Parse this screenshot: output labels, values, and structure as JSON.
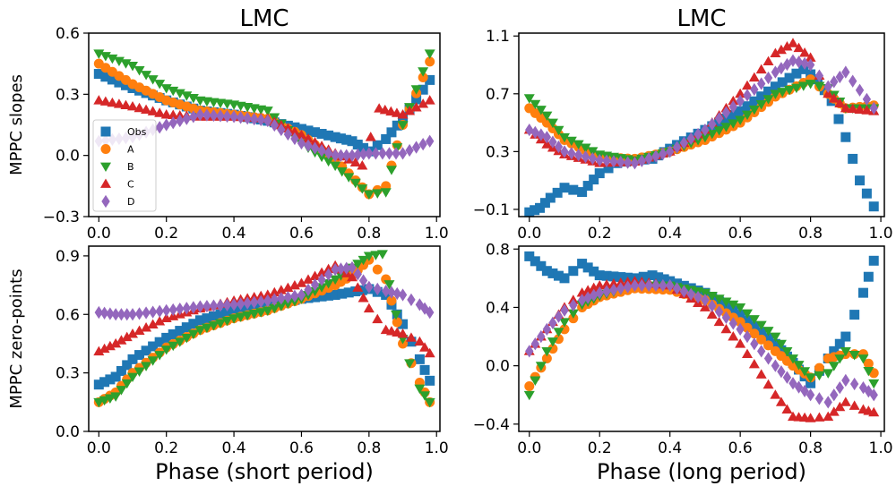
{
  "chart_data": [
    {
      "id": "p0",
      "type": "scatter",
      "title": "LMC",
      "xlabel": "",
      "ylabel": "MPPC slopes",
      "xlim": [
        -0.03,
        1.01
      ],
      "ylim": [
        -0.3,
        0.6
      ],
      "xticks": [
        0.0,
        0.2,
        0.4,
        0.6,
        0.8,
        1.0
      ],
      "xtick_labels": [
        "0.0",
        "0.2",
        "0.4",
        "0.6",
        "0.8",
        "1.0"
      ],
      "yticks": [
        -0.3,
        0.0,
        0.3,
        0.6
      ],
      "ytick_labels": [
        "−0.3",
        "0.0",
        "0.3",
        "0.6"
      ],
      "legend": "bottom-left",
      "series": [
        {
          "name": "Obs",
          "marker": "square",
          "color": "#1f77b4",
          "x": [
            0,
            0.1,
            0.2,
            0.3,
            0.4,
            0.5,
            0.6,
            0.7,
            0.75,
            0.8,
            0.85,
            0.9,
            0.98
          ],
          "y": [
            0.4,
            0.33,
            0.27,
            0.22,
            0.2,
            0.17,
            0.13,
            0.09,
            0.07,
            0.02,
            0.08,
            0.18,
            0.37
          ]
        },
        {
          "name": "A",
          "marker": "circle",
          "color": "#ff7f0e",
          "x": [
            0,
            0.1,
            0.2,
            0.3,
            0.4,
            0.5,
            0.6,
            0.7,
            0.8,
            0.85,
            0.9,
            0.98
          ],
          "y": [
            0.45,
            0.35,
            0.27,
            0.22,
            0.2,
            0.18,
            0.1,
            -0.02,
            -0.19,
            -0.15,
            0.15,
            0.46
          ]
        },
        {
          "name": "B",
          "marker": "triangle-down",
          "color": "#2ca02c",
          "x": [
            0,
            0.1,
            0.2,
            0.3,
            0.4,
            0.5,
            0.6,
            0.7,
            0.8,
            0.85,
            0.9,
            0.98
          ],
          "y": [
            0.5,
            0.44,
            0.33,
            0.27,
            0.25,
            0.22,
            0.06,
            -0.05,
            -0.19,
            -0.18,
            0.15,
            0.5
          ]
        },
        {
          "name": "C",
          "marker": "triangle-up",
          "color": "#d62728",
          "x": [
            0,
            0.1,
            0.2,
            0.3,
            0.4,
            0.5,
            0.6,
            0.7,
            0.78,
            0.83,
            0.9,
            0.98
          ],
          "y": [
            0.27,
            0.24,
            0.2,
            0.19,
            0.19,
            0.18,
            0.1,
            0.01,
            -0.05,
            0.23,
            0.2,
            0.27
          ]
        },
        {
          "name": "D",
          "marker": "diamond",
          "color": "#9467bd",
          "x": [
            0,
            0.1,
            0.2,
            0.3,
            0.4,
            0.5,
            0.6,
            0.7,
            0.75,
            0.8,
            0.9,
            0.98
          ],
          "y": [
            0.07,
            0.09,
            0.15,
            0.2,
            0.19,
            0.17,
            0.06,
            0.0,
            0.0,
            0.01,
            0.01,
            0.07
          ]
        }
      ]
    },
    {
      "id": "p1",
      "type": "scatter",
      "title": "LMC",
      "xlabel": "",
      "ylabel": "",
      "xlim": [
        -0.03,
        1.01
      ],
      "ylim": [
        -0.15,
        1.12
      ],
      "xticks": [
        0.0,
        0.2,
        0.4,
        0.6,
        0.8,
        1.0
      ],
      "xtick_labels": [
        "0.0",
        "0.2",
        "0.4",
        "0.6",
        "0.8",
        "1.0"
      ],
      "yticks": [
        -0.1,
        0.3,
        0.7,
        1.1
      ],
      "ytick_labels": [
        "−0.1",
        "0.3",
        "0.7",
        "1.1"
      ],
      "series": [
        {
          "name": "Obs",
          "marker": "square",
          "color": "#1f77b4",
          "x": [
            0,
            0.03,
            0.06,
            0.1,
            0.15,
            0.2,
            0.25,
            0.3,
            0.35,
            0.4,
            0.5,
            0.6,
            0.7,
            0.78,
            0.82,
            0.86,
            0.9,
            0.94,
            0.98
          ],
          "y": [
            -0.12,
            -0.09,
            -0.02,
            0.05,
            0.02,
            0.15,
            0.22,
            0.24,
            0.25,
            0.32,
            0.45,
            0.58,
            0.75,
            0.87,
            0.8,
            0.65,
            0.4,
            0.1,
            -0.08
          ]
        },
        {
          "name": "A",
          "marker": "circle",
          "color": "#ff7f0e",
          "x": [
            0,
            0.05,
            0.1,
            0.2,
            0.3,
            0.4,
            0.5,
            0.6,
            0.7,
            0.8,
            0.85,
            0.9,
            0.98
          ],
          "y": [
            0.6,
            0.5,
            0.38,
            0.26,
            0.25,
            0.3,
            0.38,
            0.5,
            0.68,
            0.8,
            0.7,
            0.6,
            0.62
          ]
        },
        {
          "name": "B",
          "marker": "triangle-down",
          "color": "#2ca02c",
          "x": [
            0,
            0.05,
            0.1,
            0.2,
            0.3,
            0.4,
            0.5,
            0.6,
            0.7,
            0.8,
            0.85,
            0.9,
            0.98
          ],
          "y": [
            0.67,
            0.55,
            0.4,
            0.28,
            0.24,
            0.3,
            0.4,
            0.52,
            0.7,
            0.77,
            0.74,
            0.6,
            0.6
          ]
        },
        {
          "name": "C",
          "marker": "triangle-up",
          "color": "#d62728",
          "x": [
            0,
            0.05,
            0.1,
            0.2,
            0.3,
            0.4,
            0.5,
            0.6,
            0.7,
            0.75,
            0.8,
            0.85,
            0.9,
            0.98
          ],
          "y": [
            0.45,
            0.35,
            0.28,
            0.22,
            0.23,
            0.3,
            0.45,
            0.7,
            0.98,
            1.05,
            0.95,
            0.7,
            0.6,
            0.58
          ]
        },
        {
          "name": "D",
          "marker": "diamond",
          "color": "#9467bd",
          "x": [
            0,
            0.05,
            0.1,
            0.2,
            0.3,
            0.4,
            0.5,
            0.6,
            0.7,
            0.75,
            0.8,
            0.85,
            0.9,
            0.98
          ],
          "y": [
            0.45,
            0.4,
            0.3,
            0.24,
            0.22,
            0.3,
            0.45,
            0.65,
            0.85,
            0.93,
            0.9,
            0.75,
            0.85,
            0.6
          ]
        }
      ]
    },
    {
      "id": "p2",
      "type": "scatter",
      "title": "",
      "xlabel": "Phase (short period)",
      "ylabel": "MPPC zero-points",
      "xlim": [
        -0.03,
        1.01
      ],
      "ylim": [
        0.0,
        0.95
      ],
      "xticks": [
        0.0,
        0.2,
        0.4,
        0.6,
        0.8,
        1.0
      ],
      "xtick_labels": [
        "0.0",
        "0.2",
        "0.4",
        "0.6",
        "0.8",
        "1.0"
      ],
      "yticks": [
        0.0,
        0.3,
        0.6,
        0.9
      ],
      "ytick_labels": [
        "0.0",
        "0.3",
        "0.6",
        "0.9"
      ],
      "series": [
        {
          "name": "Obs",
          "marker": "square",
          "color": "#1f77b4",
          "x": [
            0,
            0.05,
            0.1,
            0.2,
            0.3,
            0.4,
            0.5,
            0.6,
            0.7,
            0.8,
            0.85,
            0.9,
            0.95,
            0.98
          ],
          "y": [
            0.24,
            0.28,
            0.37,
            0.48,
            0.57,
            0.62,
            0.65,
            0.68,
            0.7,
            0.73,
            0.7,
            0.55,
            0.37,
            0.26
          ]
        },
        {
          "name": "A",
          "marker": "circle",
          "color": "#ff7f0e",
          "x": [
            0,
            0.05,
            0.1,
            0.2,
            0.3,
            0.4,
            0.5,
            0.6,
            0.7,
            0.75,
            0.8,
            0.85,
            0.9,
            0.95,
            0.98
          ],
          "y": [
            0.15,
            0.2,
            0.3,
            0.43,
            0.52,
            0.58,
            0.62,
            0.68,
            0.75,
            0.8,
            0.88,
            0.78,
            0.45,
            0.25,
            0.15
          ]
        },
        {
          "name": "B",
          "marker": "triangle-down",
          "color": "#2ca02c",
          "x": [
            0,
            0.05,
            0.1,
            0.2,
            0.3,
            0.4,
            0.5,
            0.6,
            0.7,
            0.75,
            0.8,
            0.84,
            0.88,
            0.92,
            0.95,
            0.98
          ],
          "y": [
            0.15,
            0.18,
            0.28,
            0.42,
            0.52,
            0.58,
            0.62,
            0.68,
            0.78,
            0.84,
            0.9,
            0.91,
            0.6,
            0.35,
            0.22,
            0.15
          ]
        },
        {
          "name": "C",
          "marker": "triangle-up",
          "color": "#d62728",
          "x": [
            0,
            0.05,
            0.1,
            0.2,
            0.3,
            0.4,
            0.5,
            0.6,
            0.7,
            0.75,
            0.8,
            0.85,
            0.9,
            0.95,
            0.98
          ],
          "y": [
            0.41,
            0.45,
            0.5,
            0.58,
            0.63,
            0.67,
            0.7,
            0.76,
            0.85,
            0.79,
            0.63,
            0.52,
            0.5,
            0.46,
            0.4
          ]
        },
        {
          "name": "D",
          "marker": "diamond",
          "color": "#9467bd",
          "x": [
            0,
            0.05,
            0.1,
            0.2,
            0.3,
            0.4,
            0.5,
            0.6,
            0.7,
            0.75,
            0.8,
            0.85,
            0.9,
            0.95,
            0.98
          ],
          "y": [
            0.61,
            0.6,
            0.6,
            0.62,
            0.64,
            0.65,
            0.67,
            0.7,
            0.83,
            0.84,
            0.74,
            0.72,
            0.7,
            0.65,
            0.61
          ]
        }
      ]
    },
    {
      "id": "p3",
      "type": "scatter",
      "title": "",
      "xlabel": "Phase (long period)",
      "ylabel": "",
      "xlim": [
        -0.03,
        1.01
      ],
      "ylim": [
        -0.45,
        0.82
      ],
      "xticks": [
        0.0,
        0.2,
        0.4,
        0.6,
        0.8,
        1.0
      ],
      "xtick_labels": [
        "0.0",
        "0.2",
        "0.4",
        "0.6",
        "0.8",
        "1.0"
      ],
      "yticks": [
        -0.4,
        0.0,
        0.4,
        0.8
      ],
      "ytick_labels": [
        "−0.4",
        "0.0",
        "0.4",
        "0.8"
      ],
      "series": [
        {
          "name": "Obs",
          "marker": "square",
          "color": "#1f77b4",
          "x": [
            0,
            0.05,
            0.1,
            0.15,
            0.2,
            0.3,
            0.35,
            0.4,
            0.5,
            0.6,
            0.7,
            0.75,
            0.8,
            0.85,
            0.9,
            0.95,
            0.98
          ],
          "y": [
            0.75,
            0.65,
            0.6,
            0.7,
            0.62,
            0.6,
            0.62,
            0.58,
            0.5,
            0.35,
            0.15,
            0.02,
            -0.12,
            0.05,
            0.2,
            0.5,
            0.72
          ]
        },
        {
          "name": "A",
          "marker": "circle",
          "color": "#ff7f0e",
          "x": [
            0,
            0.05,
            0.1,
            0.15,
            0.2,
            0.3,
            0.4,
            0.5,
            0.6,
            0.7,
            0.75,
            0.8,
            0.85,
            0.9,
            0.95,
            0.98
          ],
          "y": [
            -0.14,
            0.05,
            0.25,
            0.4,
            0.47,
            0.53,
            0.52,
            0.45,
            0.3,
            0.1,
            0.0,
            -0.08,
            0.05,
            0.08,
            0.08,
            -0.05
          ]
        },
        {
          "name": "B",
          "marker": "triangle-down",
          "color": "#2ca02c",
          "x": [
            0,
            0.05,
            0.1,
            0.15,
            0.2,
            0.3,
            0.4,
            0.5,
            0.6,
            0.7,
            0.75,
            0.8,
            0.85,
            0.9,
            0.95,
            0.98
          ],
          "y": [
            -0.2,
            0.1,
            0.3,
            0.42,
            0.48,
            0.55,
            0.55,
            0.5,
            0.4,
            0.2,
            0.05,
            -0.08,
            -0.05,
            0.1,
            0.05,
            -0.12
          ]
        },
        {
          "name": "C",
          "marker": "triangle-up",
          "color": "#d62728",
          "x": [
            0,
            0.05,
            0.1,
            0.15,
            0.2,
            0.3,
            0.4,
            0.5,
            0.6,
            0.7,
            0.75,
            0.8,
            0.85,
            0.9,
            0.95,
            0.98
          ],
          "y": [
            0.1,
            0.25,
            0.4,
            0.5,
            0.55,
            0.58,
            0.55,
            0.4,
            0.15,
            -0.2,
            -0.35,
            -0.36,
            -0.35,
            -0.25,
            -0.3,
            -0.32
          ]
        },
        {
          "name": "D",
          "marker": "diamond",
          "color": "#9467bd",
          "x": [
            0,
            0.05,
            0.1,
            0.15,
            0.2,
            0.3,
            0.4,
            0.5,
            0.6,
            0.7,
            0.75,
            0.8,
            0.85,
            0.9,
            0.95,
            0.98
          ],
          "y": [
            0.1,
            0.25,
            0.38,
            0.45,
            0.5,
            0.55,
            0.55,
            0.45,
            0.25,
            0.0,
            -0.12,
            -0.2,
            -0.25,
            -0.1,
            -0.15,
            -0.2
          ]
        }
      ]
    }
  ]
}
